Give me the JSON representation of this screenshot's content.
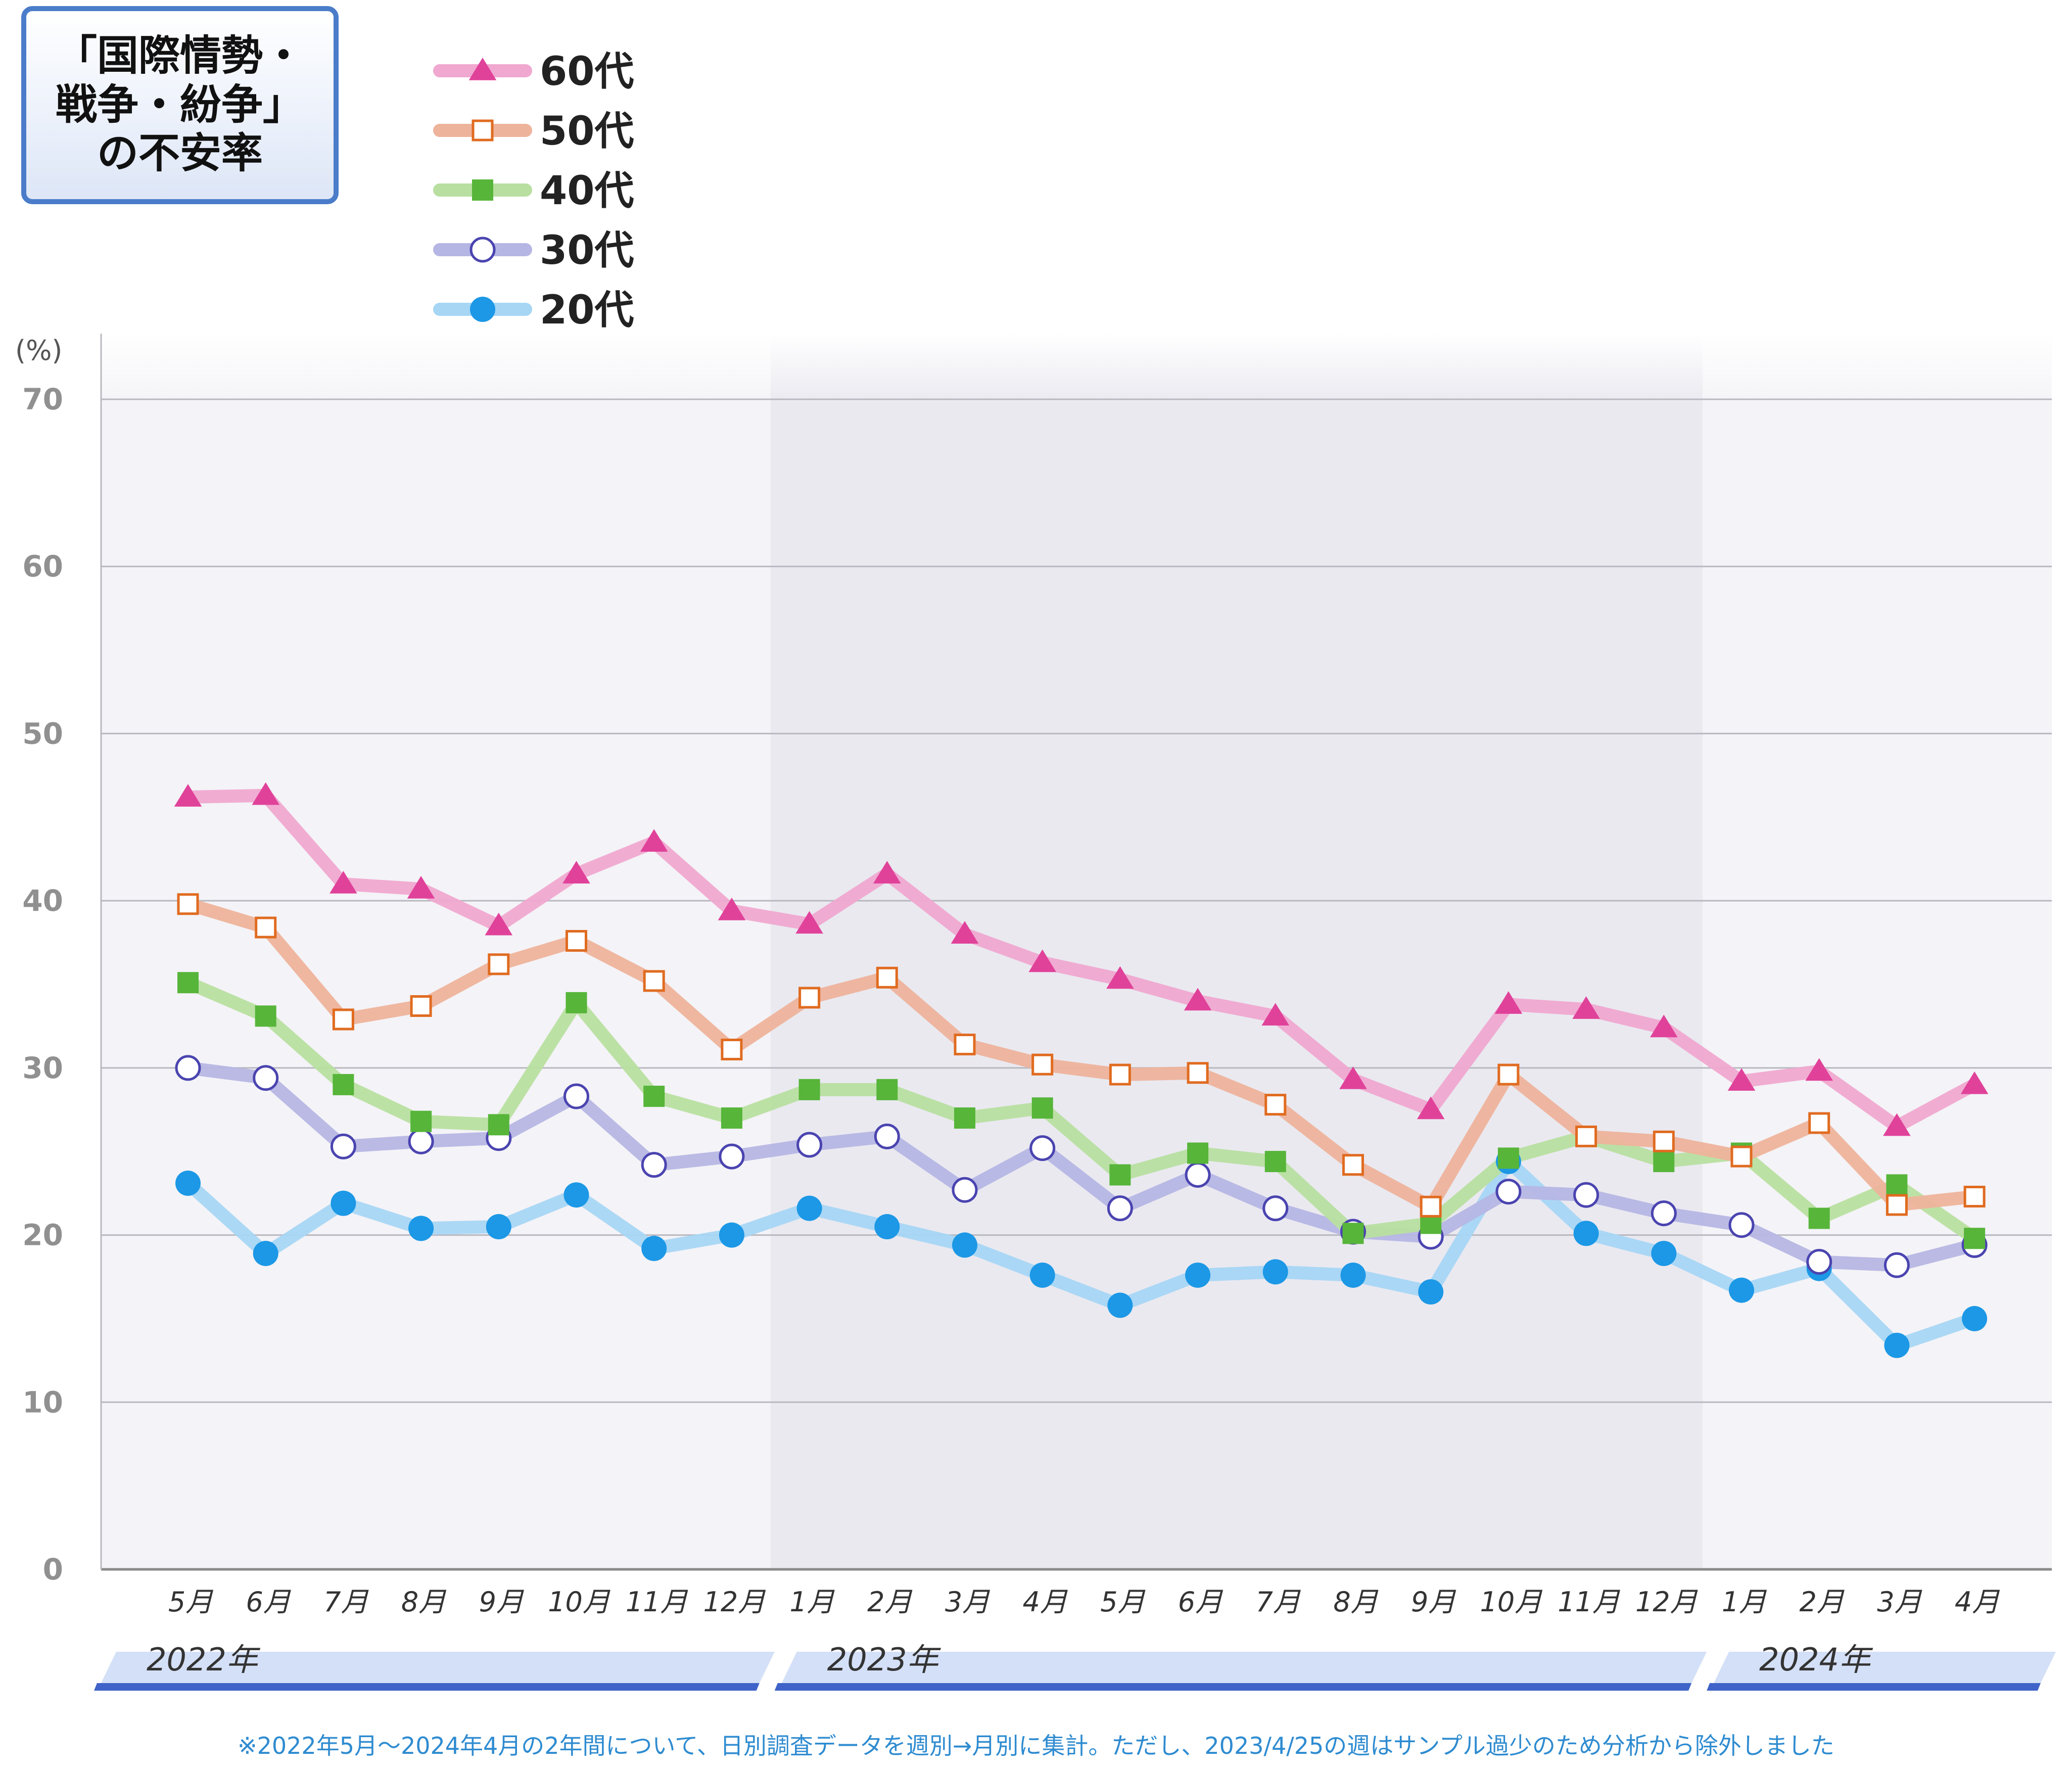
{
  "title": {
    "line1": "「国際情勢・",
    "line2": "戦争・紛争」",
    "line3": "の不安率"
  },
  "footnote": "※2022年5月～2024年4月の2年間について、日別調査データを週別→月別に集計。ただし、2023/4/25の週はサンプル過少のため分析から除外しました",
  "chart_data": {
    "type": "line",
    "ylabel": "(%)",
    "ylim": [
      0,
      70
    ],
    "yticks": [
      0,
      10,
      20,
      30,
      40,
      50,
      60,
      70
    ],
    "grid": true,
    "legend_position": "top-left",
    "categories": [
      "5月",
      "6月",
      "7月",
      "8月",
      "9月",
      "10月",
      "11月",
      "12月",
      "1月",
      "2月",
      "3月",
      "4月",
      "5月",
      "6月",
      "7月",
      "8月",
      "9月",
      "10月",
      "11月",
      "12月",
      "1月",
      "2月",
      "3月",
      "4月"
    ],
    "year_bands": [
      {
        "label": "2022年",
        "start_index": 0,
        "end_index": 7
      },
      {
        "label": "2023年",
        "start_index": 8,
        "end_index": 19
      },
      {
        "label": "2024年",
        "start_index": 20,
        "end_index": 23
      }
    ],
    "series": [
      {
        "name": "60代",
        "marker": "triangle",
        "color": "#e0429a",
        "line_color": "#f0a8d0",
        "values": [
          46.2,
          46.3,
          41.0,
          40.7,
          38.5,
          41.6,
          43.5,
          39.4,
          38.6,
          41.6,
          38.0,
          36.3,
          35.3,
          34.0,
          33.1,
          29.3,
          27.5,
          33.8,
          33.5,
          32.4,
          29.2,
          29.8,
          26.5,
          29.0
        ]
      },
      {
        "name": "50代",
        "marker": "open-square",
        "color": "#e06b20",
        "line_color": "#eeb39b",
        "values": [
          39.8,
          38.4,
          32.9,
          33.7,
          36.2,
          37.6,
          35.2,
          31.1,
          34.2,
          35.4,
          31.4,
          30.2,
          29.6,
          29.7,
          27.8,
          24.2,
          21.7,
          29.6,
          25.9,
          25.6,
          24.7,
          26.7,
          21.8,
          22.3
        ]
      },
      {
        "name": "40代",
        "marker": "square",
        "color": "#57b53a",
        "line_color": "#b8dfa0",
        "values": [
          35.1,
          33.1,
          29.0,
          26.8,
          26.6,
          33.9,
          28.3,
          27.0,
          28.7,
          28.7,
          27.0,
          27.6,
          23.6,
          24.9,
          24.4,
          20.1,
          20.7,
          24.6,
          25.9,
          24.4,
          24.9,
          21.0,
          23.0,
          19.8
        ]
      },
      {
        "name": "30代",
        "marker": "open-circle",
        "color": "#4a44b0",
        "line_color": "#b6b6e4",
        "values": [
          30.0,
          29.4,
          25.3,
          25.6,
          25.8,
          28.3,
          24.2,
          24.7,
          25.4,
          25.9,
          22.7,
          25.2,
          21.6,
          23.6,
          21.6,
          20.2,
          19.9,
          22.6,
          22.4,
          21.3,
          20.6,
          18.4,
          18.2,
          19.4
        ]
      },
      {
        "name": "20代",
        "marker": "circle",
        "color": "#1c98e6",
        "line_color": "#a6d6f4",
        "values": [
          23.1,
          18.9,
          21.9,
          20.4,
          20.5,
          22.4,
          19.2,
          20.0,
          21.6,
          20.5,
          19.4,
          17.6,
          15.8,
          17.6,
          17.8,
          17.6,
          16.6,
          24.4,
          20.1,
          18.9,
          16.7,
          18.0,
          13.4,
          15.0
        ]
      }
    ]
  }
}
